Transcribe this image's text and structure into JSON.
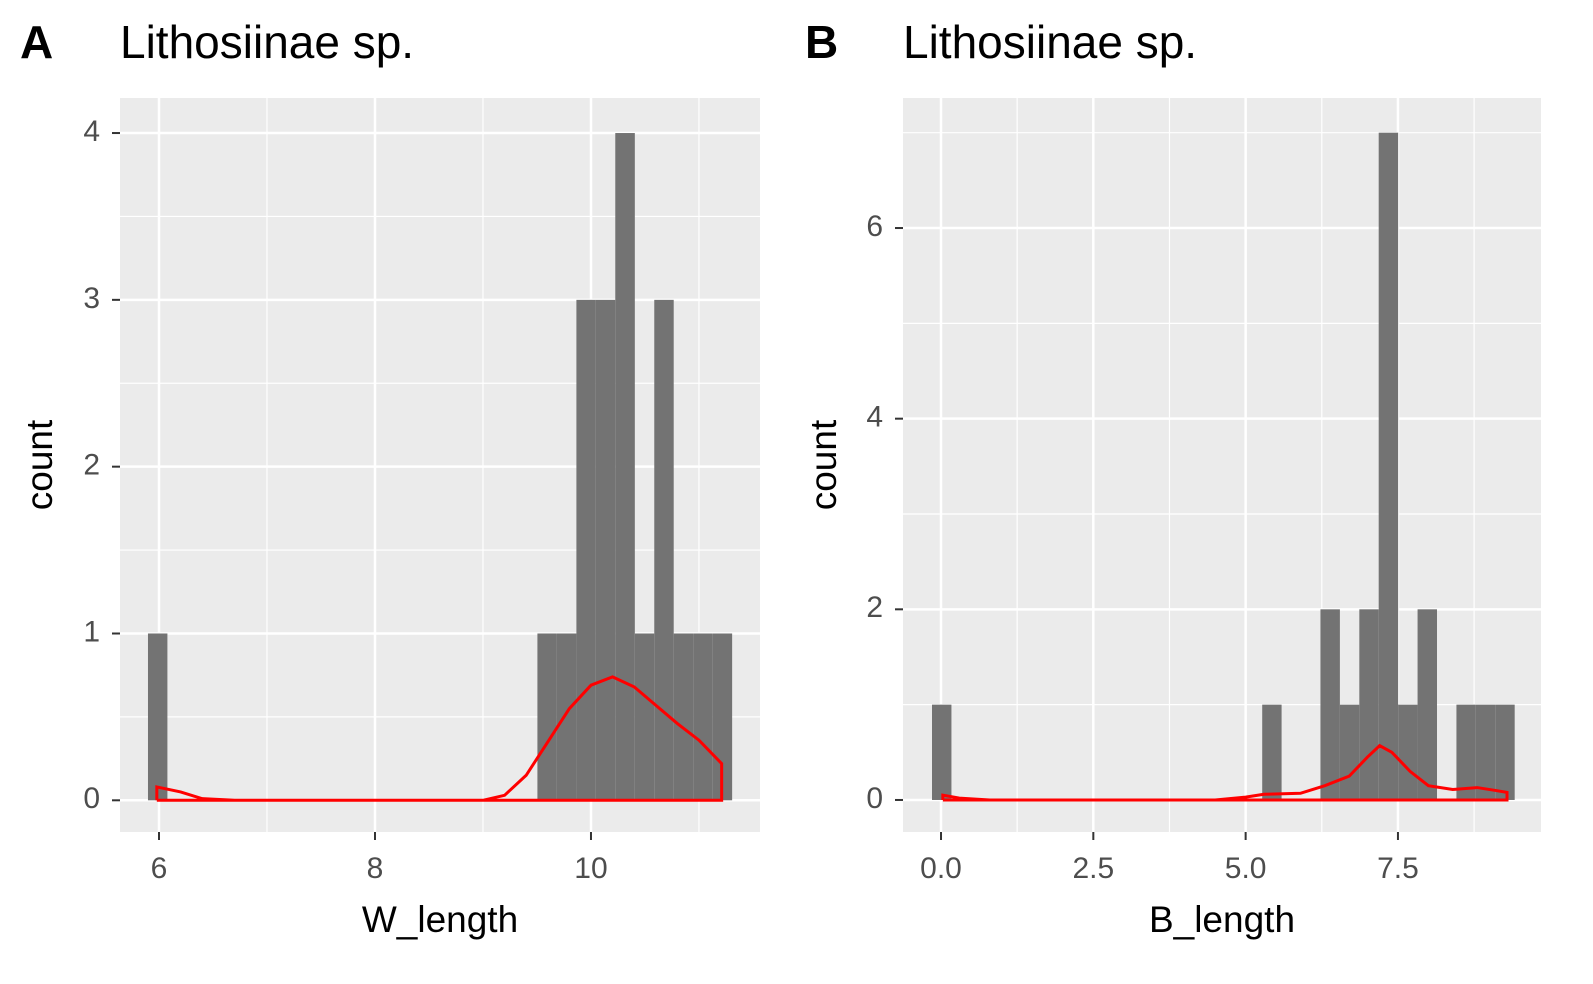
{
  "chart_data": [
    {
      "type": "histogram",
      "label": "A",
      "title": "Lithosiinae sp.",
      "x_label": "W_length",
      "y_label": "count",
      "bins": [
        5.898,
        6.078,
        6.259,
        6.439,
        6.619,
        6.8,
        6.98,
        7.16,
        7.34,
        7.521,
        7.701,
        7.881,
        8.062,
        8.242,
        8.422,
        8.603,
        8.783,
        8.963,
        9.143,
        9.324,
        9.504,
        9.684,
        9.865,
        10.045,
        10.225,
        10.406,
        10.586,
        10.766,
        10.946,
        11.127,
        11.307
      ],
      "values": [
        1,
        0,
        0,
        0,
        0,
        0,
        0,
        0,
        0,
        0,
        0,
        0,
        0,
        0,
        0,
        0,
        0,
        0,
        0,
        0,
        1,
        1,
        3,
        3,
        4,
        1,
        3,
        1,
        1,
        1
      ],
      "color": "#737373",
      "density_color": "#ff0000",
      "density_x": [
        5.98,
        5.98,
        6.2,
        6.4,
        6.7,
        9.0,
        9.2,
        9.4,
        9.6,
        9.8,
        10.0,
        10.2,
        10.4,
        10.6,
        10.8,
        11.0,
        11.21,
        11.21,
        5.98
      ],
      "density_y": [
        0,
        0.08,
        0.05,
        0.01,
        0,
        0,
        0.03,
        0.15,
        0.35,
        0.55,
        0.69,
        0.74,
        0.68,
        0.57,
        0.46,
        0.36,
        0.22,
        0,
        0
      ],
      "xlim": [
        5.639,
        11.565
      ],
      "ylim": [
        -0.19,
        4.21
      ],
      "xticks": [
        6,
        8,
        10
      ],
      "yticks": [
        0,
        1,
        2,
        3,
        4
      ],
      "grid": true
    },
    {
      "type": "histogram",
      "label": "B",
      "title": "Lithosiinae sp.",
      "x_label": "B_length",
      "y_label": "count",
      "bins": [
        -0.148,
        0.171,
        0.49,
        0.808,
        1.127,
        1.446,
        1.765,
        2.084,
        2.402,
        2.721,
        3.04,
        3.359,
        3.678,
        3.996,
        4.315,
        4.634,
        4.953,
        5.272,
        5.59,
        5.909,
        6.228,
        6.547,
        6.866,
        7.184,
        7.503,
        7.822,
        8.141,
        8.46,
        8.778,
        9.097,
        9.416
      ],
      "values": [
        1,
        0,
        0,
        0,
        0,
        0,
        0,
        0,
        0,
        0,
        0,
        0,
        0,
        0,
        0,
        0,
        0,
        1,
        0,
        0,
        2,
        1,
        2,
        7,
        1,
        2,
        0,
        1,
        1,
        1
      ],
      "color": "#737373",
      "density_color": "#ff0000",
      "density_x": [
        0.03,
        0.03,
        0.3,
        0.8,
        4.5,
        5.0,
        5.3,
        5.9,
        6.3,
        6.7,
        7.0,
        7.2,
        7.4,
        7.7,
        8.0,
        8.4,
        8.8,
        9.1,
        9.29,
        9.29,
        0.03
      ],
      "density_y": [
        0,
        0.05,
        0.02,
        0,
        0,
        0.03,
        0.06,
        0.07,
        0.15,
        0.25,
        0.45,
        0.57,
        0.5,
        0.3,
        0.15,
        0.11,
        0.13,
        0.1,
        0.08,
        0,
        0
      ],
      "xlim": [
        -0.624,
        9.848
      ],
      "ylim": [
        -0.336,
        7.364
      ],
      "xticks": [
        {
          "value": 0,
          "label": "0.0"
        },
        {
          "value": 2.5,
          "label": "2.5"
        },
        {
          "value": 5,
          "label": "5.0"
        },
        {
          "value": 7.5,
          "label": "7.5"
        }
      ],
      "yticks": [
        0,
        2,
        4,
        6
      ],
      "grid": true
    }
  ]
}
